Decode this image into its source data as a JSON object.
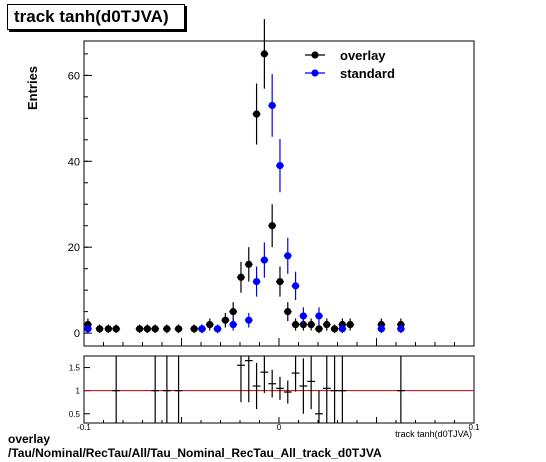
{
  "title": "track tanh(d0TJVA)",
  "footer_line1": "overlay",
  "footer_line2": "/Tau/Nominal/RecTau/All/Tau_Nominal_RecTau_All_track_d0TJVA",
  "colors": {
    "overlay": "#000000",
    "standard": "#0000ff",
    "ratio_line": "#cc0000"
  },
  "chart_data": [
    {
      "type": "scatter",
      "ylabel": "Entries",
      "xlabel": "track tanh(d0TJVA)",
      "xlim": [
        -0.1,
        0.1
      ],
      "ylim": [
        -3,
        68
      ],
      "yticks": [
        0,
        20,
        40,
        60
      ],
      "legend": {
        "position": "top-right",
        "entries": [
          "overlay",
          "standard"
        ]
      },
      "series": [
        {
          "name": "overlay",
          "marker": "circle",
          "color": "#000000",
          "x": [
            -0.098,
            -0.092,
            -0.0875,
            -0.0835,
            -0.0715,
            -0.0675,
            -0.0635,
            -0.0575,
            -0.0515,
            -0.0435,
            -0.0395,
            -0.0355,
            -0.0315,
            -0.0275,
            -0.0235,
            -0.0195,
            -0.0155,
            -0.0115,
            -0.0075,
            -0.0035,
            0.0005,
            0.0045,
            0.0085,
            0.0125,
            0.0165,
            0.0205,
            0.0245,
            0.0285,
            0.0325,
            0.0365,
            0.0525,
            0.0625
          ],
          "y": [
            2,
            1,
            1,
            1,
            1,
            1,
            1,
            1,
            1,
            1,
            1,
            2,
            1,
            3,
            5,
            13,
            16,
            51,
            65,
            25,
            12,
            5,
            2,
            2,
            2,
            1,
            2,
            1,
            2,
            2,
            2,
            2
          ],
          "yerr": [
            1.4,
            1,
            1,
            1,
            1,
            1,
            1,
            1,
            1,
            1,
            1,
            1.4,
            1,
            1.7,
            2.2,
            3.6,
            4,
            7.1,
            8.1,
            5,
            3.5,
            2.2,
            1.4,
            1.4,
            1.4,
            1,
            1.4,
            1,
            1.4,
            1.4,
            1.4,
            1.4
          ]
        },
        {
          "name": "standard",
          "marker": "circle",
          "color": "#0000ff",
          "x": [
            -0.098,
            -0.0395,
            -0.0315,
            -0.0235,
            -0.0155,
            -0.0115,
            -0.0075,
            -0.0035,
            0.0005,
            0.0045,
            0.0085,
            0.0125,
            0.0205,
            0.0325,
            0.0525,
            0.0625
          ],
          "y": [
            1,
            1,
            1,
            2,
            3,
            12,
            17,
            53,
            39,
            18,
            11,
            4,
            4,
            1,
            1,
            1
          ],
          "yerr": [
            1,
            1,
            1,
            1.4,
            1.7,
            3.5,
            4.1,
            7.3,
            6.2,
            4.2,
            3.3,
            2,
            2,
            1,
            1,
            1
          ]
        }
      ]
    },
    {
      "type": "scatter",
      "ylabel": "",
      "xlim": [
        -0.1,
        0.1
      ],
      "ylim": [
        0.3,
        1.75
      ],
      "yticks": [
        0.5,
        1,
        1.5
      ],
      "xticks": [
        -0.1,
        0,
        0.1
      ],
      "reference_line": 1,
      "series": [
        {
          "name": "ratio",
          "x": [
            -0.0835,
            -0.0635,
            -0.0575,
            -0.0515,
            -0.0195,
            -0.0155,
            -0.0115,
            -0.0075,
            -0.0035,
            0.0005,
            0.0045,
            0.0085,
            0.0125,
            0.0165,
            0.0205,
            0.0245,
            0.0285,
            0.0325,
            0.0625
          ],
          "y": [
            1,
            1,
            1,
            1,
            1.55,
            1.65,
            1.1,
            1.4,
            1.15,
            1.05,
            0.97,
            1.38,
            1.1,
            1.2,
            0.5,
            1.05,
            1,
            1,
            1
          ],
          "yerr": [
            1.2,
            1.2,
            1.2,
            1.2,
            0.8,
            0.9,
            0.5,
            0.45,
            0.3,
            0.25,
            0.25,
            0.4,
            0.6,
            0.6,
            0.5,
            0.9,
            1.2,
            1.2,
            1.2
          ]
        }
      ]
    }
  ]
}
